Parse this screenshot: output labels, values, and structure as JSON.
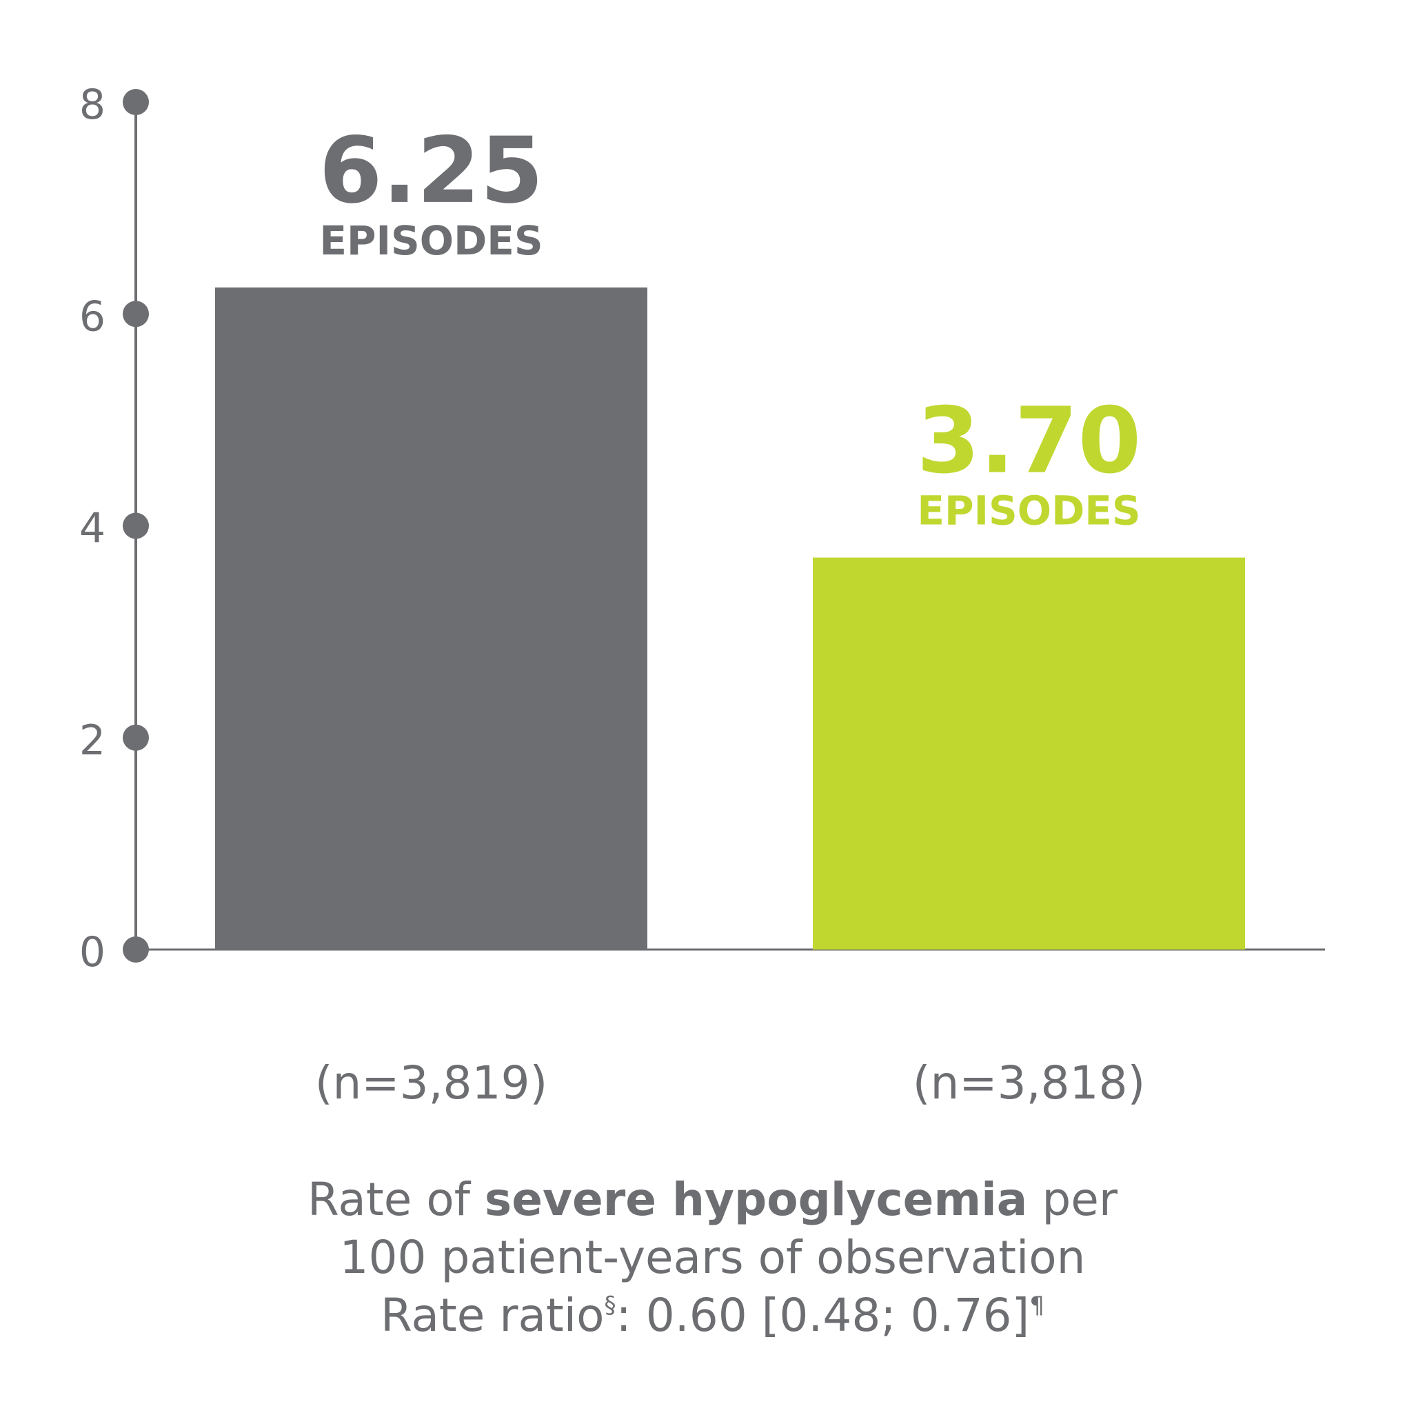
{
  "chart_data": {
    "type": "bar",
    "categories": [
      "(n=3,819)",
      "(n=3,818)"
    ],
    "values": [
      6.25,
      3.7
    ],
    "data_labels": [
      {
        "value": "6.25",
        "unit": "EPISODES"
      },
      {
        "value": "3.70",
        "unit": "EPISODES"
      }
    ],
    "colors": [
      "#6d6e71",
      "#c0d72f"
    ],
    "axis_color": "#6d6e71",
    "ylim": [
      0,
      8
    ],
    "yticks": [
      "0",
      "2",
      "4",
      "6",
      "8"
    ],
    "ytick_values": [
      0,
      2,
      4,
      6,
      8
    ],
    "grid": false,
    "legend": "none"
  },
  "caption": {
    "line1_pre": "Rate of ",
    "line1_bold": "severe hypoglycemia",
    "line1_post": " per",
    "line2": "100 patient-years of observation",
    "line3_pre": "Rate ratio",
    "line3_sup1": "§",
    "line3_mid": ": 0.60 [0.48; 0.76]",
    "line3_sup2": "¶"
  }
}
